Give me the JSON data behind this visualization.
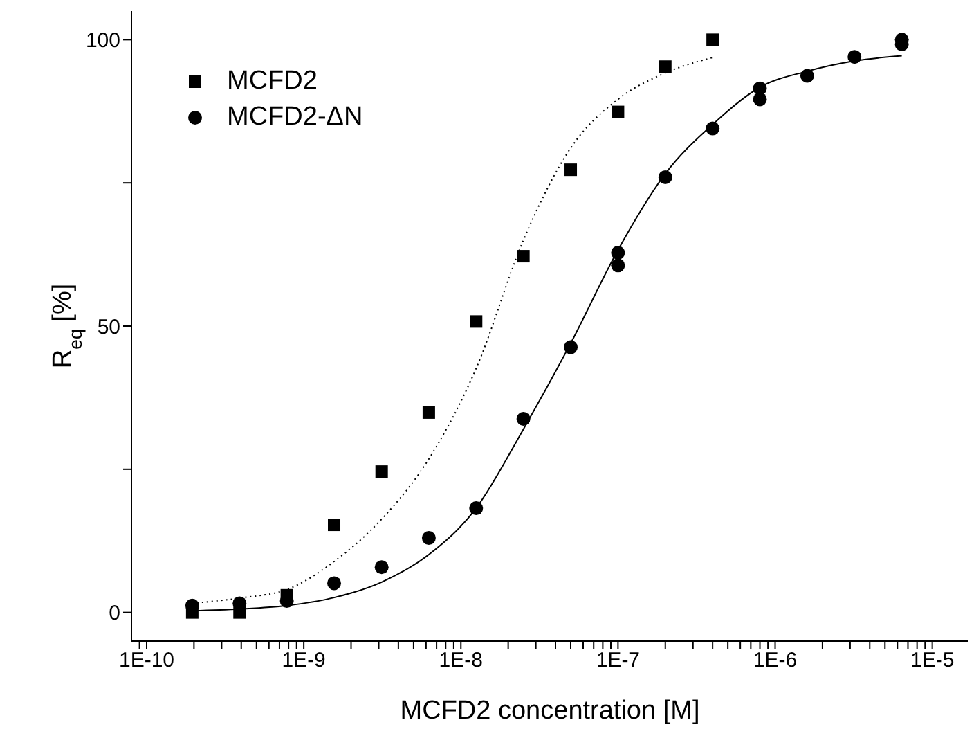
{
  "chart_data": {
    "type": "scatter",
    "xlabel": "MCFD2 concentration [M]",
    "ylabel": "R$_{eq}$ [%]",
    "log": "x",
    "legend": "top left",
    "xlim": [
      8e-11,
      1.7e-05
    ],
    "xticks": [
      {
        "value": 9e-11,
        "label": null
      },
      {
        "value": 1e-10,
        "label": "1E-10"
      },
      {
        "value": 2e-10,
        "label": null
      },
      {
        "value": 3e-10,
        "label": null
      },
      {
        "value": 4e-10,
        "label": null
      },
      {
        "value": 5e-10,
        "label": null
      },
      {
        "value": 6e-10,
        "label": null
      },
      {
        "value": 7e-10,
        "label": null
      },
      {
        "value": 8e-10,
        "label": null
      },
      {
        "value": 9e-10,
        "label": null
      },
      {
        "value": 1e-09,
        "label": "1E-9"
      },
      {
        "value": 2e-09,
        "label": null
      },
      {
        "value": 3e-09,
        "label": null
      },
      {
        "value": 4e-09,
        "label": null
      },
      {
        "value": 5e-09,
        "label": null
      },
      {
        "value": 6e-09,
        "label": null
      },
      {
        "value": 7e-09,
        "label": null
      },
      {
        "value": 8e-09,
        "label": null
      },
      {
        "value": 9e-09,
        "label": null
      },
      {
        "value": 1e-08,
        "label": "1E-8"
      },
      {
        "value": 2e-08,
        "label": null
      },
      {
        "value": 3e-08,
        "label": null
      },
      {
        "value": 4e-08,
        "label": null
      },
      {
        "value": 5e-08,
        "label": null
      },
      {
        "value": 6e-08,
        "label": null
      },
      {
        "value": 7e-08,
        "label": null
      },
      {
        "value": 8e-08,
        "label": null
      },
      {
        "value": 9e-08,
        "label": null
      },
      {
        "value": 1e-07,
        "label": "1E-7"
      },
      {
        "value": 2e-07,
        "label": null
      },
      {
        "value": 3e-07,
        "label": null
      },
      {
        "value": 4e-07,
        "label": null
      },
      {
        "value": 5e-07,
        "label": null
      },
      {
        "value": 6e-07,
        "label": null
      },
      {
        "value": 7e-07,
        "label": null
      },
      {
        "value": 8e-07,
        "label": null
      },
      {
        "value": 9e-07,
        "label": null
      },
      {
        "value": 1e-06,
        "label": "1E-6"
      },
      {
        "value": 2e-06,
        "label": null
      },
      {
        "value": 3e-06,
        "label": null
      },
      {
        "value": 4e-06,
        "label": null
      },
      {
        "value": 5e-06,
        "label": null
      },
      {
        "value": 6e-06,
        "label": null
      },
      {
        "value": 7e-06,
        "label": null
      },
      {
        "value": 8e-06,
        "label": null
      },
      {
        "value": 9e-06,
        "label": null
      },
      {
        "value": 1e-05,
        "label": "1E-5"
      }
    ],
    "ylim": [
      -5,
      105
    ],
    "yticks": [
      0,
      {
        "value": 25,
        "label": null
      },
      50,
      {
        "value": 75,
        "label": null
      },
      100
    ],
    "series": [
      {
        "name": "MCFD2",
        "marker": "square",
        "color": "#000000",
        "x": [
          1.95e-10,
          3.9e-10,
          7.8e-10,
          1.56e-09,
          3.13e-09,
          6.25e-09,
          1.25e-08,
          2.5e-08,
          5e-08,
          1e-07,
          2e-07,
          4e-07
        ],
        "values": [
          0,
          0,
          3,
          15.3,
          24.6,
          34.9,
          50.8,
          62.2,
          77.3,
          87.4,
          95.3,
          100
        ]
      },
      {
        "name": "MCFD2-ΔN",
        "marker": "circle",
        "color": "#000000",
        "x": [
          1.95e-10,
          3.9e-10,
          7.8e-10,
          1.56e-09,
          3.13e-09,
          6.25e-09,
          1.25e-08,
          2.5e-08,
          5e-08,
          1e-07,
          1e-07,
          2e-07,
          4e-07,
          8e-07,
          8e-07,
          1.6e-06,
          3.2e-06,
          6.4e-06,
          6.4e-06
        ],
        "values": [
          1.2,
          1.6,
          2,
          5.1,
          7.9,
          13,
          18.2,
          33.8,
          46.3,
          62.8,
          60.6,
          76,
          84.5,
          91.5,
          89.6,
          93.7,
          97,
          100,
          99.2
        ]
      },
      {
        "type": "line",
        "marker": "none",
        "line_style": "dotted",
        "color": "#000000",
        "x": [
          1.95e-10,
          3.9e-10,
          7.8e-10,
          1.56e-09,
          3.13e-09,
          6.25e-09,
          1.25e-08,
          2.5e-08,
          5e-08,
          1e-07,
          2e-07,
          4e-07
        ],
        "values": [
          1.6,
          2.5,
          4,
          8.9,
          16.3,
          26.8,
          42.6,
          65,
          81.1,
          89.6,
          94.2,
          96.9
        ]
      },
      {
        "type": "line",
        "marker": "none",
        "line_style": "solid",
        "color": "#000000",
        "x": [
          1.95e-10,
          3.9e-10,
          7.8e-10,
          1.56e-09,
          3.13e-09,
          6.25e-09,
          1.25e-08,
          2.5e-08,
          5e-08,
          1e-07,
          2e-07,
          4e-07,
          8e-07,
          1.6e-06,
          3.2e-06,
          6.4e-06
        ],
        "values": [
          0.3,
          0.6,
          1.2,
          2.6,
          5.3,
          10.1,
          18.2,
          32,
          47,
          63.3,
          76.6,
          85.2,
          91.7,
          94.5,
          96.3,
          97.2
        ]
      }
    ]
  }
}
